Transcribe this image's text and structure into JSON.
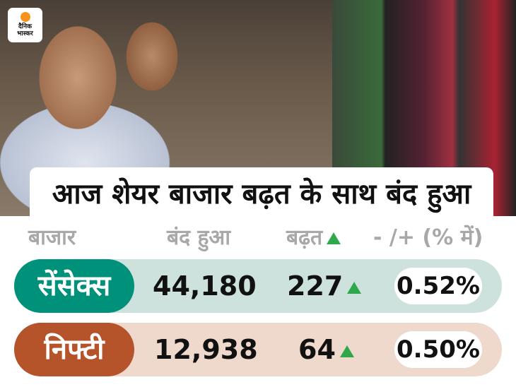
{
  "logo": {
    "line1": "दैनिक",
    "line2": "भास्कर",
    "dot_color": "#f7931d"
  },
  "title": "आज शेयर बाजार बढ़त के साथ बंद हुआ",
  "headers": {
    "market": "बाजार",
    "close": "बंद हुआ",
    "gain": "बढ़त",
    "change": "- /+ (% में)"
  },
  "rows": [
    {
      "name": "सेंसेक्स",
      "close": "44,180",
      "gain": "227",
      "pct": "0.52%",
      "pill_color": "#00917a",
      "row_color": "#cde2dd"
    },
    {
      "name": "निफ्टी",
      "close": "12,938",
      "gain": "64",
      "pct": "0.50%",
      "pill_color": "#b5532b",
      "row_color": "#efd8cc"
    }
  ],
  "up_arrow_color": "#2ea84a"
}
